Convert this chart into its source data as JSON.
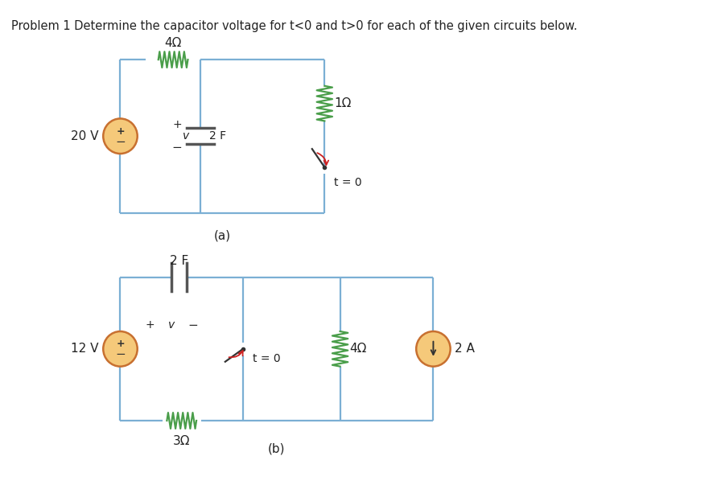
{
  "title": "Problem 1 Determine the capacitor voltage for t<0 and t>0 for each of the given circuits below.",
  "title_fontsize": 10.5,
  "bg_color": "#ffffff",
  "wire_color": "#7bafd4",
  "resistor_color": "#4a9e4a",
  "source_fill": "#f5c97a",
  "source_edge": "#c87030",
  "cap_color": "#555555",
  "switch_color": "#333333",
  "switch_arrow_color": "#cc2222",
  "text_color": "#222222",
  "circuit_a": {
    "vs_label": "20 V",
    "res_top_label": "4Ω",
    "cap_label": "2 F",
    "res_right_label": "1Ω",
    "switch_label": "t = 0",
    "sub_label": "(a)"
  },
  "circuit_b": {
    "vs_label": "12 V",
    "cap_label": "2 F",
    "res_bot_label": "3Ω",
    "switch_label": "t = 0",
    "res_mid_label": "4Ω",
    "cs_label": "2 A",
    "sub_label": "(b)"
  }
}
